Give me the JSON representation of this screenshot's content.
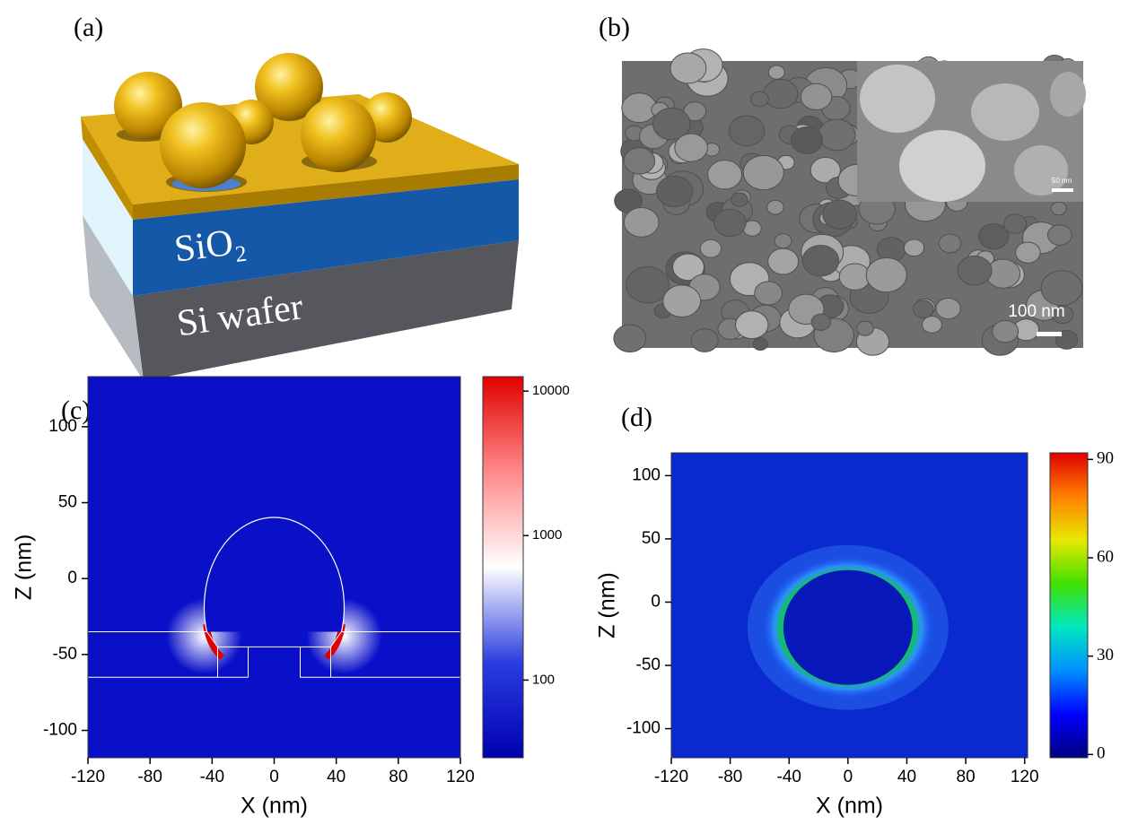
{
  "panels": [
    {
      "label": "(a)",
      "layers": [
        "SiO₂",
        "Si wafer"
      ]
    },
    {
      "label": "(b)",
      "scale_bar": "100 nm",
      "inset_scale_bar": "50 nm"
    }
  ],
  "chart_data": [
    {
      "type": "heatmap",
      "panel_label": "(c)",
      "xlabel": "X (nm)",
      "ylabel": "Z (nm)",
      "xlim": [
        -120,
        120
      ],
      "xticks": [
        -120,
        -80,
        -40,
        0,
        40,
        80,
        120
      ],
      "ylim": [
        -118,
        133
      ],
      "yticks": [
        -100,
        -50,
        0,
        50,
        100
      ],
      "background": "#0a10c8",
      "colorbar": {
        "scale": "log",
        "lim": [
          29,
          12600
        ],
        "ticks": [
          100,
          1000,
          10000
        ],
        "colors": [
          "#0000b0",
          "#2a3ee0",
          "#ffffff",
          "#ff8a8a",
          "#e00000"
        ]
      }
    },
    {
      "type": "heatmap",
      "panel_label": "(d)",
      "xlabel": "X (nm)",
      "ylabel": "Z (nm)",
      "xlim": [
        -120,
        122
      ],
      "xticks": [
        -120,
        -80,
        -40,
        0,
        40,
        80,
        120
      ],
      "ylim": [
        -123,
        118
      ],
      "yticks": [
        -100,
        -50,
        0,
        50,
        100
      ],
      "background": "#0a2ad0",
      "colorbar": {
        "scale": "linear",
        "lim": [
          -1,
          92
        ],
        "ticks": [
          0,
          30,
          60,
          90
        ],
        "colors": [
          "#00007f",
          "#0000ff",
          "#0090ff",
          "#00e8c0",
          "#40e000",
          "#e8e800",
          "#ff8000",
          "#e00000"
        ]
      }
    }
  ]
}
